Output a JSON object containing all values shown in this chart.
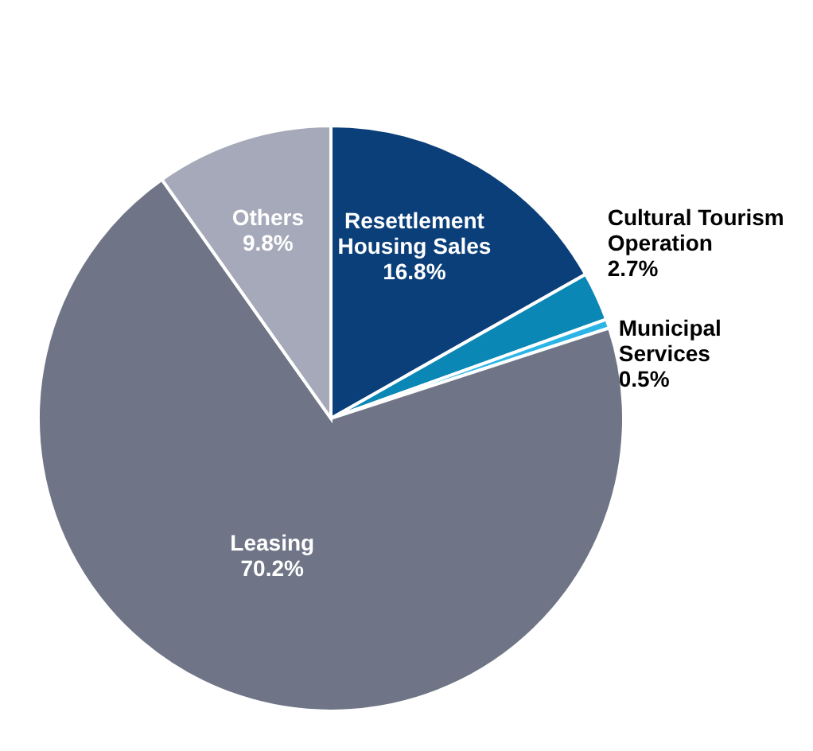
{
  "chart_data": {
    "type": "pie",
    "categories": [
      "Resettlement Housing Sales",
      "Cultural Tourism Operation",
      "Municipal Services",
      "Leasing",
      "Others"
    ],
    "values": [
      16.8,
      2.7,
      0.5,
      70.2,
      9.8
    ],
    "colors": [
      "#0b3f7a",
      "#0a87b5",
      "#2bb5e6",
      "#6f7586",
      "#a5a9b9"
    ],
    "value_labels": [
      "16.8%",
      "2.7%",
      "0.5%",
      "70.2%",
      "9.8%"
    ],
    "legend": false
  }
}
